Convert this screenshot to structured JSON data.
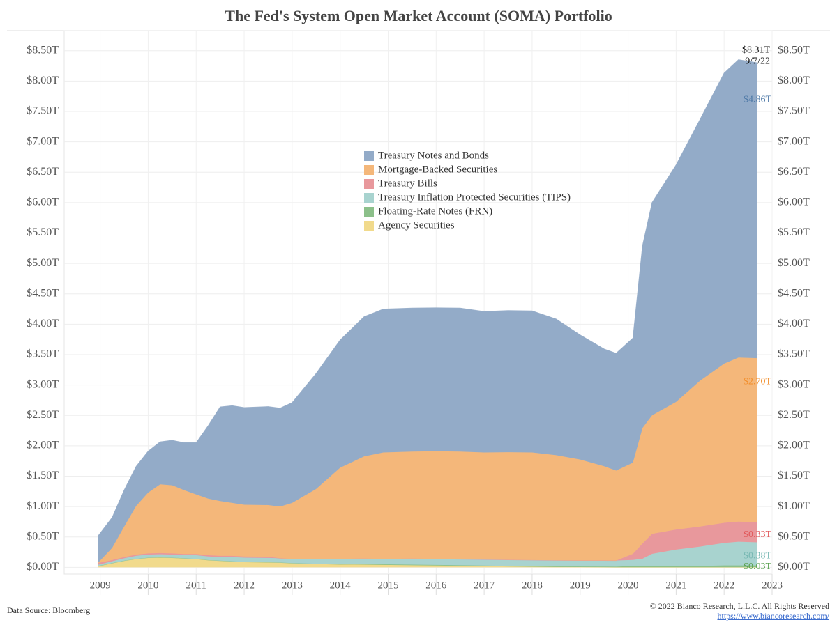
{
  "chart_data": {
    "type": "stacked_area",
    "title": "The Fed's System Open Market Account (SOMA) Portfolio",
    "x": [
      2008.95,
      2009.25,
      2009.5,
      2009.75,
      2010.0,
      2010.25,
      2010.5,
      2010.75,
      2011.0,
      2011.25,
      2011.5,
      2011.75,
      2012.0,
      2012.5,
      2012.75,
      2013.0,
      2013.5,
      2014.0,
      2014.5,
      2014.9,
      2015.5,
      2016.0,
      2016.5,
      2017.0,
      2017.5,
      2018.0,
      2018.5,
      2019.0,
      2019.5,
      2019.75,
      2020.1,
      2020.3,
      2020.5,
      2021.0,
      2021.5,
      2022.0,
      2022.3,
      2022.69
    ],
    "xlim": [
      2008.25,
      2023.0
    ],
    "xticks": [
      2009,
      2010,
      2011,
      2012,
      2013,
      2014,
      2015,
      2016,
      2017,
      2018,
      2019,
      2020,
      2021,
      2022,
      2023
    ],
    "ylim": [
      -0.11,
      8.83
    ],
    "yticks": [
      {
        "value": 0,
        "label": "$0.00T"
      },
      {
        "value": 0.5,
        "label": "$0.50T"
      },
      {
        "value": 1,
        "label": "$1.00T"
      },
      {
        "value": 1.5,
        "label": "$1.50T"
      },
      {
        "value": 2,
        "label": "$2.00T"
      },
      {
        "value": 2.5,
        "label": "$2.50T"
      },
      {
        "value": 3,
        "label": "$3.00T"
      },
      {
        "value": 3.5,
        "label": "$3.50T"
      },
      {
        "value": 4,
        "label": "$4.00T"
      },
      {
        "value": 4.5,
        "label": "$4.50T"
      },
      {
        "value": 5,
        "label": "$5.00T"
      },
      {
        "value": 5.5,
        "label": "$5.50T"
      },
      {
        "value": 6,
        "label": "$6.00T"
      },
      {
        "value": 6.5,
        "label": "$6.50T"
      },
      {
        "value": 7,
        "label": "$7.00T"
      },
      {
        "value": 7.5,
        "label": "$7.50T"
      },
      {
        "value": 8,
        "label": "$8.00T"
      },
      {
        "value": 8.5,
        "label": "$8.50T"
      }
    ],
    "grid": true,
    "series": [
      {
        "name": "Treasury Notes and Bonds",
        "color": "#93abc8",
        "values": [
          0.44,
          0.5,
          0.6,
          0.65,
          0.68,
          0.7,
          0.74,
          0.78,
          0.85,
          1.2,
          1.55,
          1.6,
          1.6,
          1.62,
          1.62,
          1.65,
          1.9,
          2.1,
          2.3,
          2.36,
          2.36,
          2.36,
          2.36,
          2.32,
          2.33,
          2.33,
          2.24,
          2.05,
          1.93,
          1.93,
          2.05,
          3.0,
          3.5,
          3.9,
          4.3,
          4.78,
          4.9,
          4.86
        ],
        "value_labels": [
          null,
          null,
          null,
          null,
          null,
          null,
          null,
          null,
          null,
          null,
          null,
          null,
          null,
          null,
          null,
          null,
          null,
          null,
          null,
          null,
          null,
          null,
          null,
          null,
          null,
          null,
          null,
          null,
          null,
          null,
          null,
          null,
          null,
          null,
          null,
          null,
          null,
          "$4.86T"
        ],
        "label_color": "#4e79a7"
      },
      {
        "name": "Mortgage-Backed Securities",
        "color": "#f4b77a",
        "values": [
          0,
          0.2,
          0.5,
          0.8,
          1.0,
          1.13,
          1.12,
          1.05,
          0.98,
          0.93,
          0.9,
          0.87,
          0.85,
          0.85,
          0.85,
          0.92,
          1.15,
          1.5,
          1.68,
          1.75,
          1.76,
          1.77,
          1.77,
          1.76,
          1.77,
          1.77,
          1.73,
          1.66,
          1.55,
          1.48,
          1.5,
          1.9,
          1.95,
          2.1,
          2.4,
          2.62,
          2.7,
          2.7
        ],
        "value_labels": [
          null,
          null,
          null,
          null,
          null,
          null,
          null,
          null,
          null,
          null,
          null,
          null,
          null,
          null,
          null,
          null,
          null,
          null,
          null,
          null,
          null,
          null,
          null,
          null,
          null,
          null,
          null,
          null,
          null,
          null,
          null,
          null,
          null,
          null,
          null,
          null,
          null,
          "$2.70T"
        ],
        "label_color": "#f28e2b"
      },
      {
        "name": "Treasury Bills",
        "color": "#e8989c",
        "values": [
          0.03,
          0.02,
          0.02,
          0.02,
          0.02,
          0.02,
          0.02,
          0.02,
          0.02,
          0.02,
          0.02,
          0.02,
          0.02,
          0.02,
          0,
          0,
          0,
          0,
          0,
          0,
          0,
          0,
          0,
          0,
          0,
          0,
          0,
          0,
          0,
          0,
          0.1,
          0.25,
          0.33,
          0.33,
          0.33,
          0.33,
          0.33,
          0.33
        ],
        "value_labels": [
          null,
          null,
          null,
          null,
          null,
          null,
          null,
          null,
          null,
          null,
          null,
          null,
          null,
          null,
          null,
          null,
          null,
          null,
          null,
          null,
          null,
          null,
          null,
          null,
          null,
          null,
          null,
          null,
          null,
          null,
          null,
          null,
          null,
          null,
          null,
          null,
          null,
          "$0.33T"
        ],
        "label_color": "#e15759"
      },
      {
        "name": "Treasury Inflation Protected Securities (TIPS)",
        "color": "#a8d3cf",
        "values": [
          0.02,
          0.03,
          0.04,
          0.05,
          0.05,
          0.05,
          0.05,
          0.05,
          0.06,
          0.06,
          0.06,
          0.07,
          0.07,
          0.07,
          0.07,
          0.07,
          0.08,
          0.09,
          0.09,
          0.09,
          0.1,
          0.1,
          0.1,
          0.1,
          0.1,
          0.1,
          0.1,
          0.1,
          0.1,
          0.1,
          0.1,
          0.12,
          0.2,
          0.27,
          0.32,
          0.37,
          0.39,
          0.38
        ],
        "value_labels": [
          null,
          null,
          null,
          null,
          null,
          null,
          null,
          null,
          null,
          null,
          null,
          null,
          null,
          null,
          null,
          null,
          null,
          null,
          null,
          null,
          null,
          null,
          null,
          null,
          null,
          null,
          null,
          null,
          null,
          null,
          null,
          null,
          null,
          null,
          null,
          null,
          null,
          "$0.38T"
        ],
        "label_color": "#76b7b2"
      },
      {
        "name": "Floating-Rate Notes (FRN)",
        "color": "#8cc08a",
        "values": [
          0,
          0,
          0,
          0,
          0,
          0,
          0,
          0,
          0,
          0,
          0,
          0,
          0,
          0,
          0,
          0,
          0,
          0,
          0.01,
          0.01,
          0.01,
          0.01,
          0.01,
          0.01,
          0.01,
          0.01,
          0.01,
          0.01,
          0.01,
          0.01,
          0.02,
          0.02,
          0.02,
          0.02,
          0.02,
          0.03,
          0.03,
          0.03
        ],
        "value_labels": [
          null,
          null,
          null,
          null,
          null,
          null,
          null,
          null,
          null,
          null,
          null,
          null,
          null,
          null,
          null,
          null,
          null,
          null,
          null,
          null,
          null,
          null,
          null,
          null,
          null,
          null,
          null,
          null,
          null,
          null,
          null,
          null,
          null,
          null,
          null,
          null,
          null,
          "$0.03T"
        ],
        "label_color": "#59a14f"
      },
      {
        "name": "Agency Securities",
        "color": "#f1da8c",
        "values": [
          0.02,
          0.07,
          0.11,
          0.14,
          0.16,
          0.165,
          0.16,
          0.15,
          0.14,
          0.12,
          0.11,
          0.1,
          0.09,
          0.085,
          0.08,
          0.07,
          0.06,
          0.05,
          0.045,
          0.04,
          0.035,
          0.03,
          0.025,
          0.02,
          0.015,
          0.01,
          0.006,
          0.004,
          0.003,
          0.002,
          0.002,
          0.002,
          0.002,
          0.002,
          0.002,
          0.002,
          0.002,
          0.002
        ]
      }
    ],
    "total_label": {
      "value": 8.31,
      "label": "$8.31T",
      "date": "9/7/22"
    },
    "source": "Data Source: Bloomberg",
    "copyright": "© 2022 Bianco Research, L.L.C. All Rights Reserved",
    "url": "https://www.biancoresearch.com/"
  }
}
